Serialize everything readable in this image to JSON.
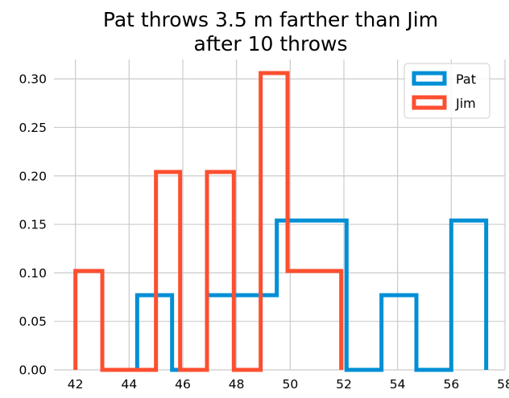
{
  "chart_data": {
    "type": "histogram",
    "title_lines": [
      "Pat throws 3.5 m farther than Jim",
      "after 10 throws"
    ],
    "xlabel": "",
    "ylabel": "",
    "xlim": [
      41.2,
      58.0
    ],
    "ylim": [
      0.0,
      0.32
    ],
    "xticks": [
      42,
      44,
      46,
      48,
      50,
      52,
      54,
      56,
      58
    ],
    "yticks": [
      0.0,
      0.05,
      0.1,
      0.15,
      0.2,
      0.25,
      0.3
    ],
    "xtick_labels": [
      "42",
      "44",
      "46",
      "48",
      "50",
      "52",
      "54",
      "56",
      "58"
    ],
    "ytick_labels": [
      "0.00",
      "0.05",
      "0.10",
      "0.15",
      "0.20",
      "0.25",
      "0.30"
    ],
    "grid": true,
    "legend_position": "top-right",
    "series": [
      {
        "name": "Pat",
        "color": "#008fd5",
        "histtype": "step",
        "bin_edges": [
          44.3,
          45.6,
          46.9,
          48.2,
          49.5,
          50.8,
          52.1,
          53.4,
          54.7,
          56.0,
          57.3
        ],
        "densities": [
          0.077,
          0.0,
          0.077,
          0.077,
          0.154,
          0.154,
          0.0,
          0.077,
          0.0,
          0.154
        ]
      },
      {
        "name": "Jim",
        "color": "#fc4f30",
        "histtype": "step",
        "bin_edges": [
          42.0,
          43.0,
          44.0,
          45.0,
          45.9,
          46.9,
          47.9,
          48.9,
          49.9,
          50.9,
          51.9
        ],
        "densities": [
          0.102,
          0.0,
          0.0,
          0.204,
          0.0,
          0.204,
          0.0,
          0.306,
          0.102,
          0.102
        ]
      }
    ]
  },
  "legend": {
    "items": [
      {
        "label": "Pat",
        "color": "#008fd5"
      },
      {
        "label": "Jim",
        "color": "#fc4f30"
      }
    ]
  }
}
